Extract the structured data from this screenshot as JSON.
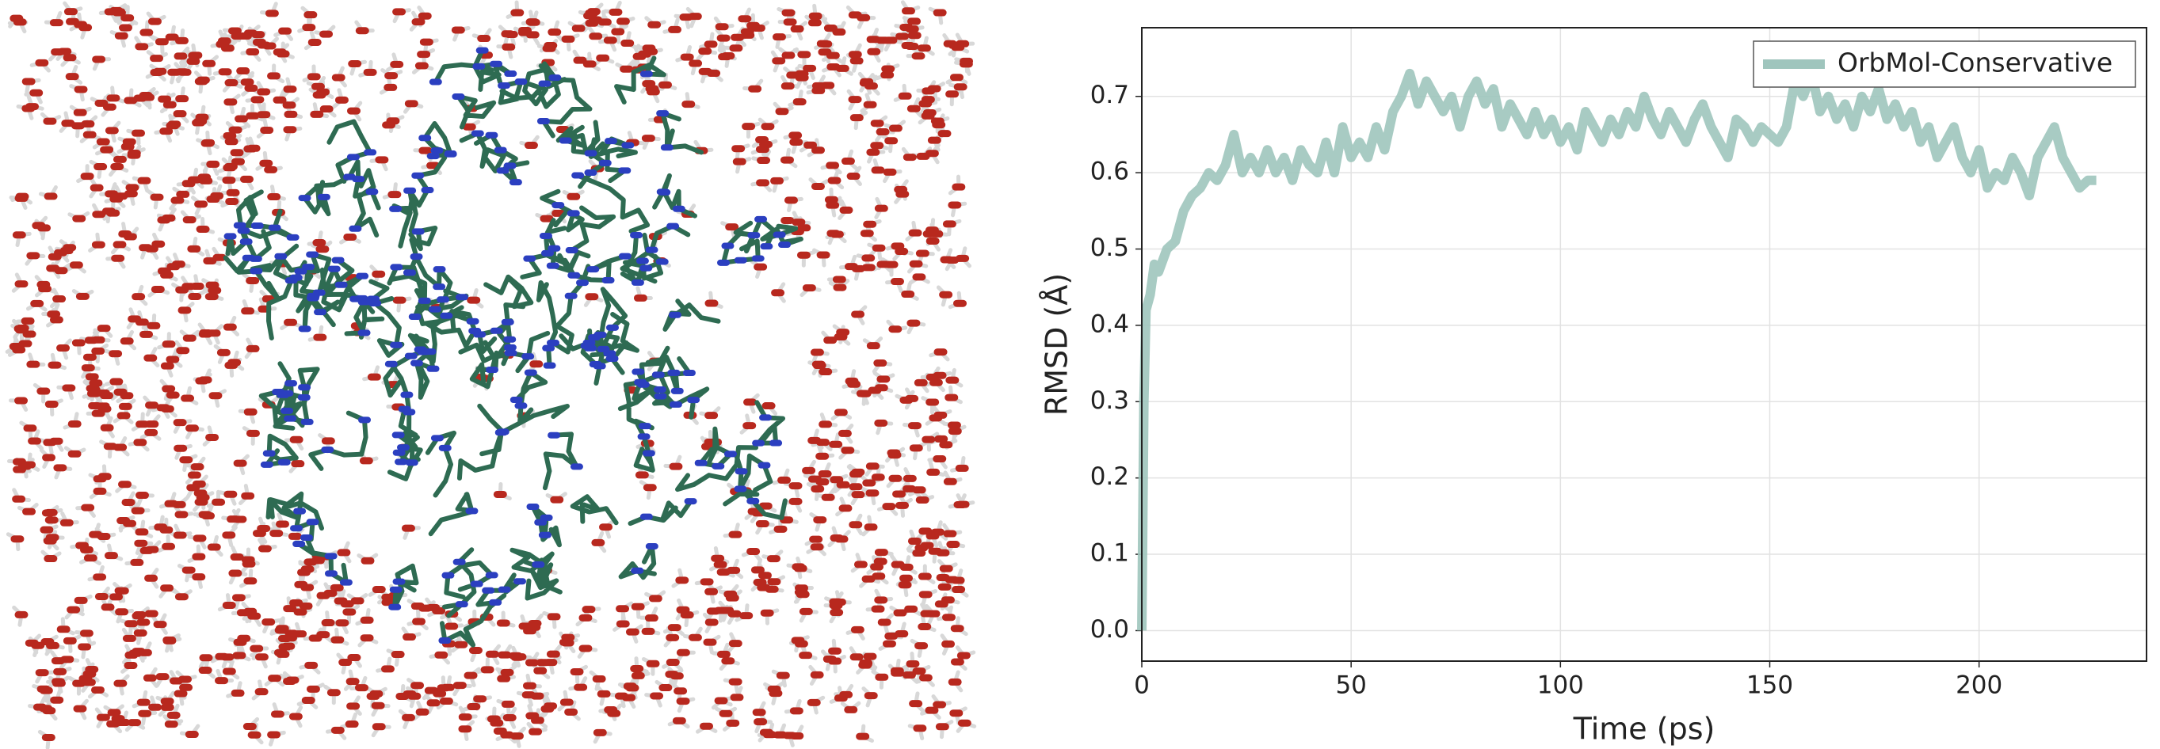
{
  "chart_data": {
    "type": "line",
    "xlabel": "Time (ps)",
    "ylabel": "RMSD (Å)",
    "x": [
      0,
      0.5,
      1,
      2,
      3,
      4,
      6,
      8,
      10,
      12,
      14,
      16,
      18,
      20,
      22,
      24,
      26,
      28,
      30,
      32,
      34,
      36,
      38,
      40,
      42,
      44,
      46,
      48,
      50,
      52,
      54,
      56,
      58,
      60,
      62,
      64,
      66,
      68,
      70,
      72,
      74,
      76,
      78,
      80,
      82,
      84,
      86,
      88,
      90,
      92,
      94,
      96,
      98,
      100,
      102,
      104,
      106,
      108,
      110,
      112,
      114,
      116,
      118,
      120,
      122,
      124,
      126,
      128,
      130,
      132,
      134,
      136,
      138,
      140,
      142,
      144,
      146,
      148,
      150,
      152,
      154,
      156,
      158,
      160,
      162,
      164,
      166,
      168,
      170,
      172,
      174,
      176,
      178,
      180,
      182,
      184,
      186,
      188,
      190,
      192,
      194,
      196,
      198,
      200,
      202,
      204,
      206,
      208,
      210,
      212,
      214,
      216,
      218,
      220,
      222,
      224,
      226,
      228
    ],
    "series": [
      {
        "name": "OrbMol-Conservative",
        "color": "#9fc5bd",
        "values": [
          0.0,
          0.3,
          0.42,
          0.44,
          0.48,
          0.47,
          0.5,
          0.51,
          0.55,
          0.57,
          0.58,
          0.6,
          0.59,
          0.61,
          0.65,
          0.6,
          0.62,
          0.6,
          0.63,
          0.6,
          0.62,
          0.59,
          0.63,
          0.61,
          0.6,
          0.64,
          0.6,
          0.66,
          0.62,
          0.64,
          0.62,
          0.66,
          0.63,
          0.68,
          0.7,
          0.73,
          0.69,
          0.72,
          0.7,
          0.68,
          0.7,
          0.66,
          0.7,
          0.72,
          0.69,
          0.71,
          0.66,
          0.69,
          0.67,
          0.65,
          0.68,
          0.65,
          0.67,
          0.64,
          0.66,
          0.63,
          0.68,
          0.66,
          0.64,
          0.67,
          0.65,
          0.68,
          0.66,
          0.7,
          0.67,
          0.65,
          0.68,
          0.66,
          0.64,
          0.67,
          0.69,
          0.66,
          0.64,
          0.62,
          0.67,
          0.66,
          0.64,
          0.66,
          0.65,
          0.64,
          0.66,
          0.72,
          0.7,
          0.73,
          0.68,
          0.7,
          0.67,
          0.69,
          0.66,
          0.7,
          0.68,
          0.71,
          0.67,
          0.69,
          0.66,
          0.68,
          0.64,
          0.66,
          0.62,
          0.64,
          0.66,
          0.62,
          0.6,
          0.63,
          0.58,
          0.6,
          0.59,
          0.62,
          0.6,
          0.57,
          0.62,
          0.64,
          0.66,
          0.62,
          0.6,
          0.58,
          0.59,
          0.59
        ]
      }
    ],
    "xlim": [
      0,
      240
    ],
    "ylim": [
      -0.04,
      0.79
    ],
    "xticks": [
      0,
      50,
      100,
      150,
      200
    ],
    "yticks": [
      {
        "value": 0,
        "label": "0.0"
      },
      0.1,
      0.2,
      0.3,
      0.4,
      0.5,
      0.6,
      0.7
    ],
    "grid": true,
    "legend": "upper right"
  }
}
